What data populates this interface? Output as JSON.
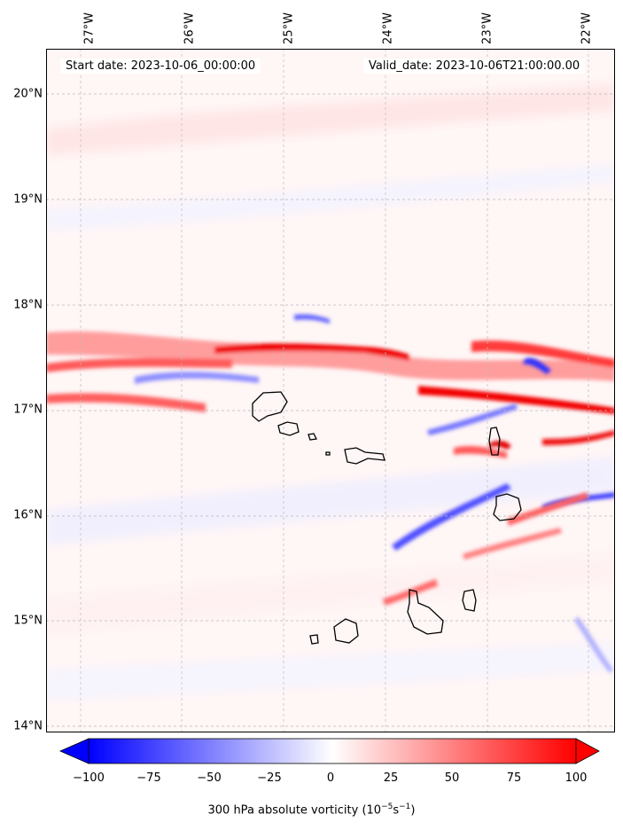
{
  "map": {
    "start_text": "Start date: 2023-10-06_00:00:00",
    "valid_text": "Valid_date: 2023-10-06T21:00:00.00",
    "longitude_labels": [
      "27°W",
      "26°W",
      "25°W",
      "24°W",
      "23°W",
      "22°W"
    ],
    "latitude_labels": [
      "20°N",
      "19°N",
      "18°N",
      "17°N",
      "16°N",
      "15°N",
      "14°N"
    ],
    "extent": {
      "lon_min": -27.35,
      "lon_max": -21.75,
      "lat_min": 13.95,
      "lat_max": 20.45
    },
    "gridlines": true,
    "coastlines": true
  },
  "colorbar": {
    "ticks": [
      "−100",
      "−75",
      "−50",
      "−25",
      "0",
      "25",
      "50",
      "75",
      "100"
    ],
    "range": [
      -100,
      100
    ],
    "extend": "both",
    "colormap": "bwr",
    "colors": {
      "min": "#0000ff",
      "mid": "#ffffff",
      "max": "#ff0000"
    },
    "label_main": "300 hPa absolute vorticity (10",
    "label_exp1": "−5",
    "label_mid": "s",
    "label_exp2": "−1",
    "label_end": ")"
  }
}
